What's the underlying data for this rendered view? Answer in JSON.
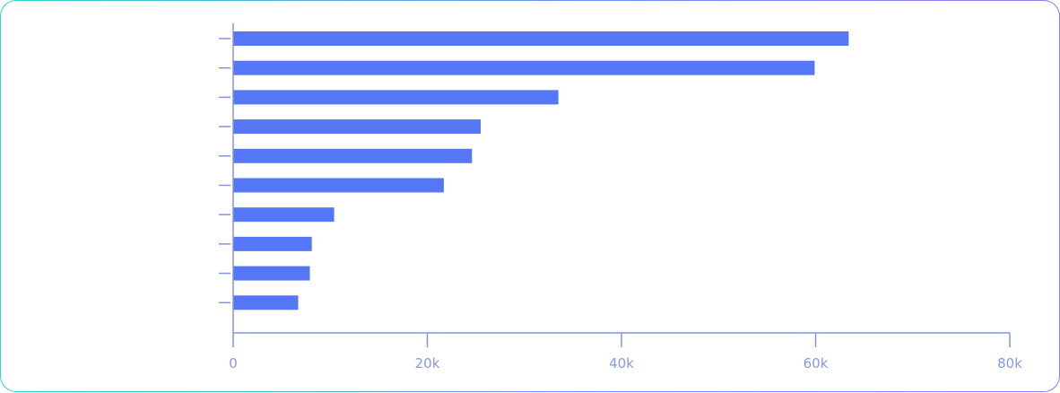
{
  "chart_data": {
    "type": "bar",
    "orientation": "horizontal",
    "categories": [
      "",
      "",
      "",
      "",
      "",
      "",
      "",
      "",
      "",
      ""
    ],
    "values": [
      63400,
      59900,
      33500,
      25500,
      24600,
      21700,
      10400,
      8100,
      7900,
      6700
    ],
    "title": "",
    "xlabel": "",
    "ylabel": "",
    "xlim": [
      0,
      80000
    ],
    "x_ticks": [
      0,
      20000,
      40000,
      60000,
      80000
    ],
    "x_tick_labels": [
      "0",
      "20k",
      "40k",
      "60k",
      "80k"
    ],
    "grid": false,
    "legend": "none",
    "colors": {
      "bar": "#5577f5",
      "axis": "#8494de",
      "tick_label": "#8a98e3"
    }
  }
}
